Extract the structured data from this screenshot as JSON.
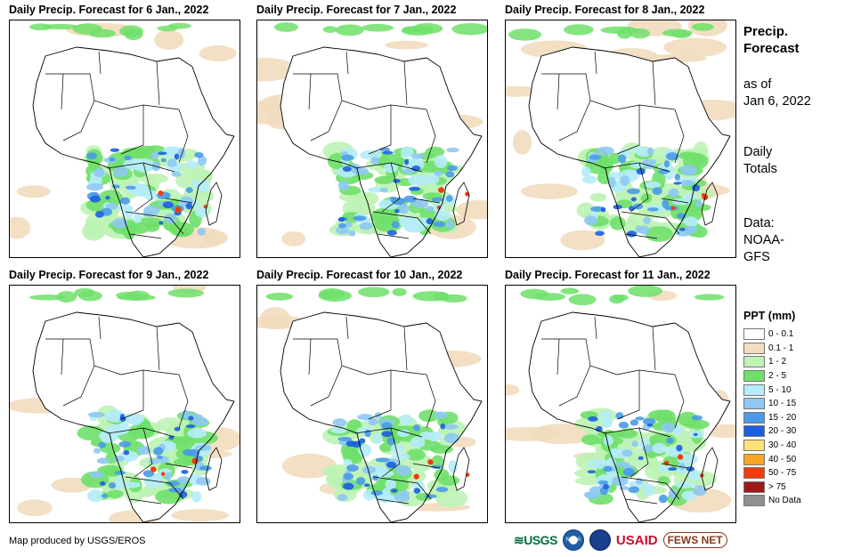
{
  "panels": [
    {
      "title": "Daily Precip. Forecast for 6 Jan., 2022"
    },
    {
      "title": "Daily Precip. Forecast for 7 Jan., 2022"
    },
    {
      "title": "Daily Precip. Forecast for 8 Jan., 2022"
    },
    {
      "title": "Daily Precip. Forecast for 9 Jan., 2022"
    },
    {
      "title": "Daily Precip. Forecast for 10 Jan., 2022"
    },
    {
      "title": "Daily Precip. Forecast for 11 Jan., 2022"
    }
  ],
  "sidebar": {
    "title_line1": "Precip.",
    "title_line2": "Forecast",
    "asof_line1": "as of",
    "asof_line2": "Jan 6, 2022",
    "totals_line1": "Daily",
    "totals_line2": "Totals",
    "data_line1": "Data:",
    "data_line2": "NOAA-",
    "data_line3": "GFS"
  },
  "legend": {
    "title": "PPT (mm)",
    "items": [
      {
        "label": "0 - 0.1",
        "color": "#ffffff"
      },
      {
        "label": "0.1 - 1",
        "color": "#f1dcbe"
      },
      {
        "label": "1 - 2",
        "color": "#bdf3b4"
      },
      {
        "label": "2 - 5",
        "color": "#6fe06a"
      },
      {
        "label": "5 - 10",
        "color": "#b5ecfa"
      },
      {
        "label": "10 - 15",
        "color": "#8ec8f3"
      },
      {
        "label": "15 - 20",
        "color": "#4a9ae8"
      },
      {
        "label": "20 - 30",
        "color": "#1b5fe0"
      },
      {
        "label": "30 - 40",
        "color": "#fde27a"
      },
      {
        "label": "40 - 50",
        "color": "#f6a623"
      },
      {
        "label": "50 - 75",
        "color": "#f03c0c"
      },
      {
        "label": "> 75",
        "color": "#a01818"
      },
      {
        "label": "No Data",
        "color": "#8f8f8f"
      }
    ]
  },
  "credit": "Map produced by USGS/EROS",
  "logos": {
    "usgs": "≋USGS",
    "noaa": "NOAA",
    "usaid": "USAID",
    "fews": "FEWS NET"
  }
}
